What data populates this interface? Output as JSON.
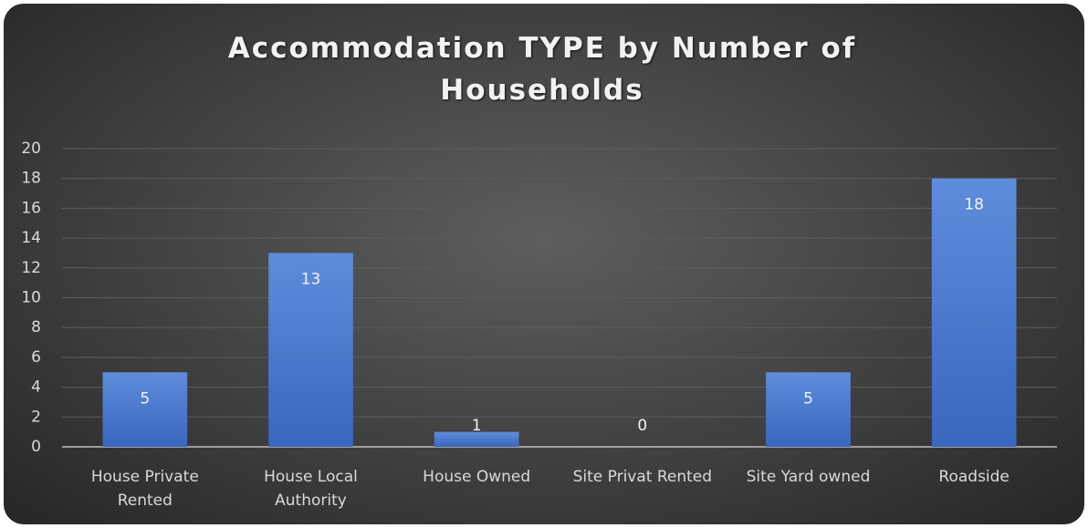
{
  "chart_data": {
    "type": "bar",
    "title": "Accommodation TYPE by Number of Households",
    "categories": [
      "House Private Rented",
      "House Local Authority",
      "House Owned",
      "Site Privat Rented",
      "Site Yard owned",
      "Roadside"
    ],
    "values": [
      5,
      13,
      1,
      0,
      5,
      18
    ],
    "color": "#4472c4",
    "ylim": [
      0,
      20
    ],
    "yticks": [
      0,
      2,
      4,
      6,
      8,
      10,
      12,
      14,
      16,
      18,
      20
    ],
    "grid": true
  }
}
